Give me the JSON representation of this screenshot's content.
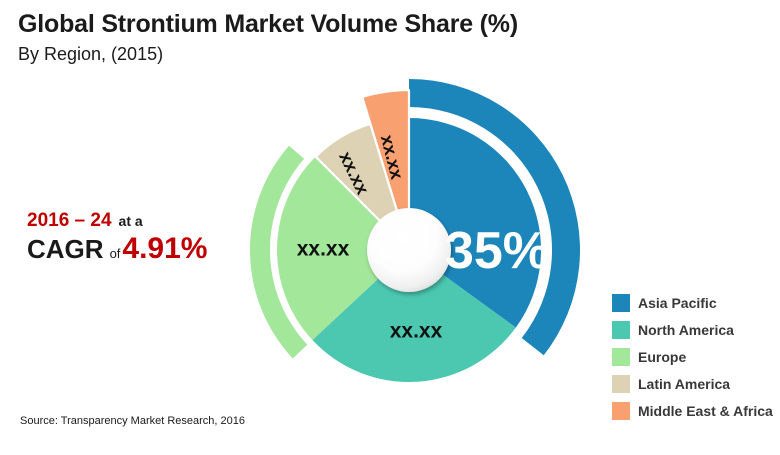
{
  "header": {
    "title": "Global Strontium Market Volume Share (%)",
    "subtitle": "By Region, (2015)"
  },
  "cagr": {
    "period": "2016 – 24",
    "connector": "at a",
    "metric": "CAGR",
    "of": "of",
    "value": "4.91%"
  },
  "source": "Source: Transparency Market Research, 2016",
  "colors": {
    "accent_red": "#c00000",
    "asia_pacific_blue": "#1c86bb",
    "north_america_teal": "#4cc8b1",
    "europe_green": "#a3e79b",
    "latin_america_beige": "#ded2b4",
    "mea_orange": "#f9a071"
  },
  "chart_data": {
    "type": "pie",
    "donut": true,
    "title": "Global Strontium Market Volume Share (%)",
    "subtitle": "By Region, (2015)",
    "legend_position": "right",
    "pie_radius": 132,
    "inner_circle_radius": 42,
    "segments": [
      {
        "name": "Asia Pacific",
        "color": "#1c86bb",
        "value_label": "35%",
        "share_pct": 35,
        "start_deg": 0,
        "end_deg": 126,
        "label_style": {
          "x": 88,
          "y": 1,
          "rot": 0,
          "size": 52,
          "fill": "#ffffff",
          "weight": 800
        }
      },
      {
        "name": "North America",
        "color": "#4cc8b1",
        "value_label": "xx.xx",
        "share_pct_est": 28.1,
        "start_deg": 126,
        "end_deg": 227,
        "label_style": {
          "x": 7,
          "y": 81,
          "rot": 0,
          "size": 21,
          "fill": "#111111",
          "weight": 700
        }
      },
      {
        "name": "Europe",
        "color": "#a3e79b",
        "value_label": "xx.xx",
        "share_pct_est": 24.4,
        "start_deg": 227,
        "end_deg": 315,
        "label_style": {
          "x": -86,
          "y": -1,
          "rot": 0,
          "size": 21,
          "fill": "#111111",
          "weight": 700
        }
      },
      {
        "name": "Latin America",
        "color": "#ded2b4",
        "value_label": "xx.xx",
        "share_pct_est": 7.8,
        "start_deg": 315,
        "end_deg": 343,
        "stroke": "#ffffff",
        "label_style": {
          "x": -55,
          "y": -77,
          "rot": 64,
          "size": 18,
          "fill": "#111111",
          "weight": 700
        }
      },
      {
        "name": "Middle East & Africa",
        "color": "#f9a071",
        "value_label": "xx.xx",
        "share_pct_est": 4.7,
        "start_deg": 343,
        "end_deg": 360,
        "outer_radius": 160,
        "stroke": "#ffffff",
        "label_style": {
          "x": -17,
          "y": -93,
          "rot": 76,
          "size": 18,
          "fill": "#111111",
          "weight": 700
        }
      }
    ],
    "decor_arcs": [
      {
        "color": "#1c86bb",
        "r_inner": 143,
        "r_outer": 171,
        "start_deg": 0,
        "end_deg": 128
      },
      {
        "color": "#a3e79b",
        "r_inner": 139,
        "r_outer": 159,
        "start_deg": 227,
        "end_deg": 311
      }
    ]
  }
}
